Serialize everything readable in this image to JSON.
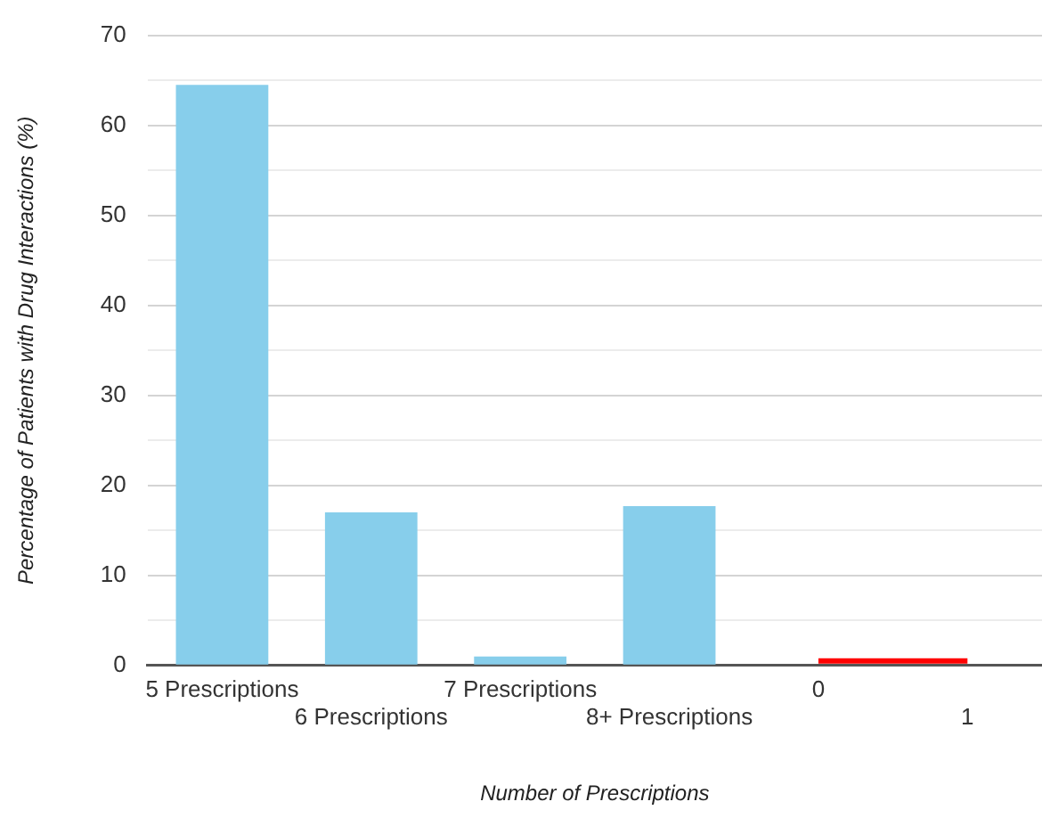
{
  "chart_data": {
    "type": "bar",
    "xlabel": "Number of Prescriptions",
    "ylabel": "Percentage of Patients with Drug Interactions (%)",
    "categories": [
      "5 Prescriptions",
      "6 Prescriptions",
      "7 Prescriptions",
      "8+ Prescriptions",
      "0",
      "1"
    ],
    "series": [
      {
        "color": "#87ceeb",
        "values": [
          64.5,
          17,
          1,
          17.7,
          null,
          null
        ]
      },
      {
        "type": "line",
        "color": "#ff0000",
        "values": [
          null,
          null,
          null,
          null,
          0.5,
          0.5
        ]
      }
    ],
    "ylim": [
      0,
      70
    ],
    "yticks": [
      0,
      {
        "value": 5,
        "label": null
      },
      10,
      {
        "value": 15,
        "label": null
      },
      20,
      {
        "value": 25,
        "label": null
      },
      30,
      {
        "value": 35,
        "label": null
      },
      40,
      {
        "value": 45,
        "label": null
      },
      50,
      {
        "value": 55,
        "label": null
      },
      60,
      {
        "value": 65,
        "label": null
      },
      70
    ],
    "grid": "y",
    "legend": false,
    "marker": "none"
  }
}
